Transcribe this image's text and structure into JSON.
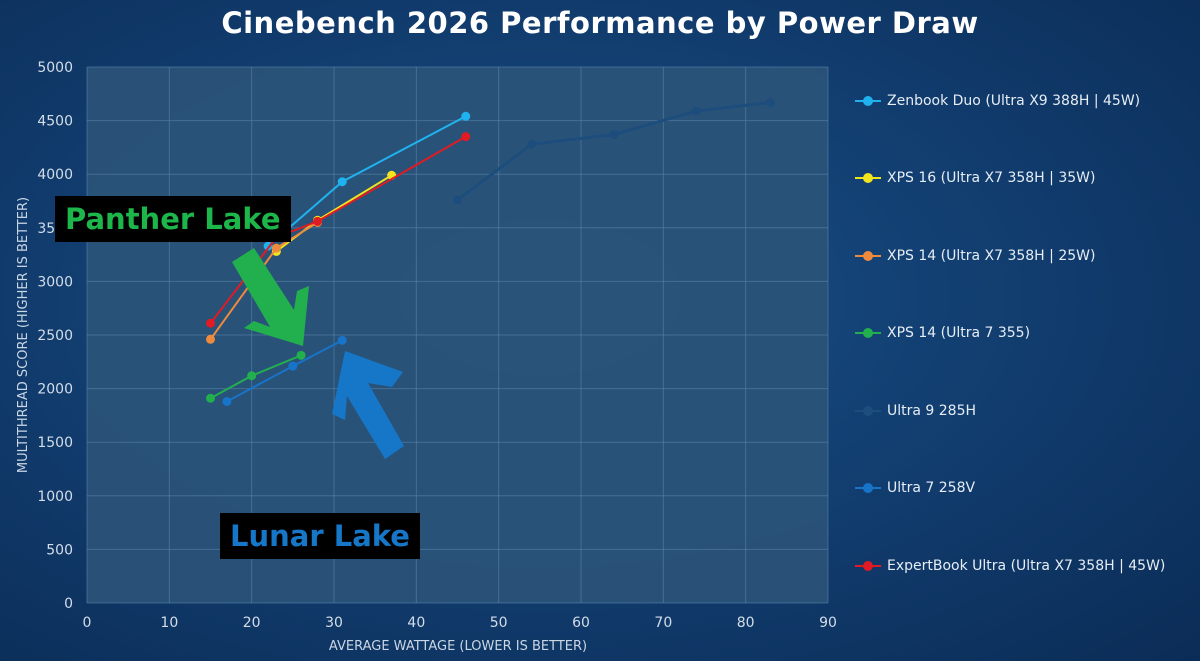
{
  "chart_data": {
    "type": "line",
    "title": "Cinebench 2026 Performance by Power Draw",
    "xlabel": "AVERAGE WATTAGE (LOWER IS BETTER)",
    "ylabel": "MULTITHREAD SCORE (HIGHER IS BETTER)",
    "xlim": [
      0,
      90
    ],
    "ylim": [
      0,
      5000
    ],
    "xticks": [
      0,
      10,
      20,
      30,
      40,
      50,
      60,
      70,
      80,
      90
    ],
    "yticks": [
      0,
      500,
      1000,
      1500,
      2000,
      2500,
      3000,
      3500,
      4000,
      4500,
      5000
    ],
    "grid": true,
    "legend_position": "right",
    "series": [
      {
        "name": "Zenbook Duo (Ultra X9 388H | 45W)",
        "color": "#1fb2ef",
        "points": [
          [
            22,
            3330
          ],
          [
            31,
            3930
          ],
          [
            46,
            4540
          ]
        ]
      },
      {
        "name": "XPS 16 (Ultra X7 358H | 35W)",
        "color": "#f2e51e",
        "points": [
          [
            23,
            3280
          ],
          [
            28,
            3570
          ],
          [
            37,
            3990
          ]
        ]
      },
      {
        "name": "XPS 14 (Ultra X7 358H | 25W)",
        "color": "#ee8a3c",
        "points": [
          [
            15,
            2460
          ],
          [
            23,
            3310
          ],
          [
            28,
            3550
          ]
        ]
      },
      {
        "name": "XPS 14 (Ultra 7 355)",
        "color": "#22b04f",
        "points": [
          [
            15,
            1910
          ],
          [
            20,
            2120
          ],
          [
            26,
            2310
          ]
        ]
      },
      {
        "name": "Ultra 9 285H",
        "color": "#1d4d7d",
        "points": [
          [
            45,
            3760
          ],
          [
            54,
            4280
          ],
          [
            64,
            4370
          ],
          [
            74,
            4590
          ],
          [
            83,
            4670
          ]
        ]
      },
      {
        "name": "Ultra 7 258V",
        "color": "#1874c9",
        "points": [
          [
            17,
            1880
          ],
          [
            25,
            2210
          ],
          [
            31,
            2450
          ]
        ]
      },
      {
        "name": "ExpertBook Ultra (Ultra X7 358H | 45W)",
        "color": "#e01b24",
        "points": [
          [
            15,
            2610
          ],
          [
            23,
            3410
          ],
          [
            28,
            3560
          ],
          [
            46,
            4350
          ]
        ]
      }
    ],
    "annotations": [
      {
        "text": "Panther Lake",
        "color": "#1db64a"
      },
      {
        "text": "Lunar Lake",
        "color": "#1677c8"
      }
    ]
  }
}
